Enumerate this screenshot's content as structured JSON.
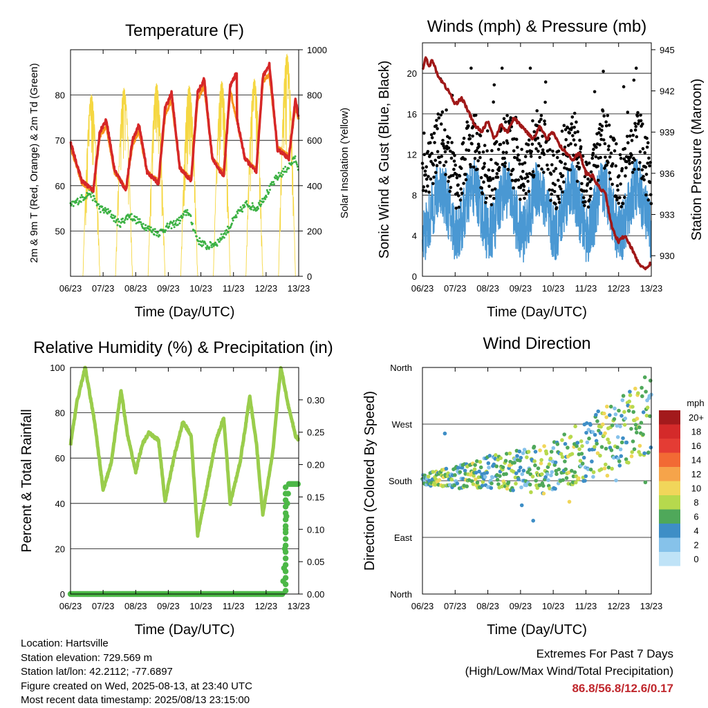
{
  "colors": {
    "temp_red": "#d62728",
    "temp_orange": "#f7941d",
    "dewpoint_green": "#3bb143",
    "solar_yellow": "#f5d742",
    "gust_black": "#000000",
    "wind_blue": "#4a98d3",
    "pressure_maroon": "#a01818",
    "rh_green": "#9acd4c",
    "precip_green": "#4cb847",
    "extremes_red": "#c0272d"
  },
  "chart_data": [
    {
      "id": "temperature",
      "type": "line",
      "title": "Temperature (F)",
      "xlabel": "Time (Day/UTC)",
      "ylabel": "2m & 9m T (Red, Orange) & 2m Td (Green)",
      "y2label": "Solar Insolation (Yellow)",
      "x_ticks": [
        "06/23",
        "07/23",
        "08/23",
        "09/23",
        "10/23",
        "11/23",
        "12/23",
        "13/23"
      ],
      "x_range_days": [
        6,
        13
      ],
      "ylim": [
        40,
        90
      ],
      "y_ticks": [
        50,
        60,
        70,
        80
      ],
      "y2lim": [
        0,
        1000
      ],
      "y2_ticks": [
        0,
        200,
        400,
        600,
        800,
        1000
      ],
      "grid": true,
      "daily_highs": [
        75.5,
        73.5,
        81.0,
        83.5,
        85.0,
        86.8,
        79.0
      ],
      "daily_lows": [
        58.5,
        59.0,
        60.5,
        61.0,
        62.0,
        63.0,
        66.0
      ],
      "series": [
        {
          "name": "2m T",
          "x_day": [
            6.0,
            6.35,
            6.7,
            6.9,
            7.1,
            7.35,
            7.7,
            7.9,
            8.1,
            8.35,
            8.7,
            8.9,
            9.1,
            9.35,
            9.7,
            9.9,
            10.1,
            10.35,
            10.7,
            10.9,
            11.1,
            10.9,
            11.35,
            11.7,
            11.9,
            12.1,
            12.35,
            12.7,
            12.9,
            13.0
          ],
          "values": [
            69.5,
            61.0,
            59.0,
            72.0,
            74.5,
            63.5,
            59.0,
            70.0,
            73.5,
            63.0,
            60.5,
            77.0,
            80.5,
            64.0,
            61.0,
            80.5,
            83.5,
            66.0,
            62.0,
            82.0,
            85.0,
            82.0,
            66.0,
            63.0,
            84.0,
            86.8,
            68.0,
            66.0,
            79.0,
            75.0
          ]
        },
        {
          "name": "9m T",
          "x_day": [
            6.0,
            6.35,
            6.7,
            6.9,
            7.1,
            7.35,
            7.7,
            7.9,
            8.1,
            8.35,
            8.7,
            8.9,
            9.1,
            9.35,
            9.7,
            9.9,
            10.1,
            10.35,
            10.7,
            10.9,
            11.35,
            11.7,
            11.9,
            12.1,
            12.35,
            12.7,
            12.9,
            13.0
          ],
          "values": [
            68.5,
            60.5,
            59.0,
            71.0,
            73.0,
            63.0,
            59.5,
            69.0,
            72.0,
            63.0,
            61.0,
            75.5,
            79.0,
            64.0,
            61.5,
            79.0,
            82.0,
            66.0,
            63.0,
            81.0,
            66.0,
            63.5,
            83.0,
            84.5,
            68.5,
            66.5,
            77.5,
            74.5
          ]
        },
        {
          "name": "2m Td",
          "x_day": [
            6.0,
            6.3,
            6.6,
            6.9,
            7.2,
            7.5,
            7.8,
            8.1,
            8.4,
            8.7,
            9.0,
            9.3,
            9.6,
            9.9,
            10.2,
            10.5,
            10.8,
            11.1,
            11.4,
            11.7,
            12.0,
            12.3,
            12.6,
            12.9,
            13.0
          ],
          "values": [
            55.5,
            57.0,
            58.5,
            55.0,
            54.0,
            51.5,
            53.5,
            52.0,
            50.5,
            49.5,
            51.0,
            52.0,
            54.5,
            48.0,
            46.5,
            47.5,
            50.0,
            53.5,
            56.0,
            55.0,
            58.0,
            61.5,
            63.5,
            66.0,
            64.0
          ]
        },
        {
          "name": "Solar Insolation",
          "axis": "y2",
          "daily_peaks": [
            800,
            830,
            850,
            840,
            860,
            870,
            980
          ]
        }
      ]
    },
    {
      "id": "winds",
      "type": "line",
      "title": "Winds (mph) & Pressure (mb)",
      "xlabel": "Time (Day/UTC)",
      "ylabel": "Sonic Wind & Gust (Blue, Black)",
      "y2label": "Station Pressure (Maroon)",
      "x_ticks": [
        "06/23",
        "07/23",
        "08/23",
        "09/23",
        "10/23",
        "11/23",
        "12/23",
        "13/23"
      ],
      "x_range_days": [
        6,
        13
      ],
      "ylim": [
        0,
        23
      ],
      "y_ticks": [
        0,
        4,
        8,
        12,
        16,
        20
      ],
      "y2lim": [
        928.5,
        945.5
      ],
      "y2_ticks": [
        930,
        933,
        936,
        939,
        942,
        945
      ],
      "grid": true,
      "series": [
        {
          "name": "Station Pressure",
          "axis": "y2",
          "x_day": [
            6.0,
            6.1,
            6.2,
            6.3,
            6.5,
            6.8,
            7.0,
            7.2,
            7.4,
            7.6,
            7.8,
            8.0,
            8.2,
            8.4,
            8.6,
            8.8,
            9.0,
            9.2,
            9.4,
            9.6,
            9.8,
            10.0,
            10.2,
            10.4,
            10.6,
            10.8,
            11.0,
            11.2,
            11.4,
            11.6,
            11.8,
            12.0,
            12.2,
            12.4,
            12.6,
            12.8,
            13.0
          ],
          "values": [
            943.5,
            944.5,
            943.8,
            944.2,
            943.0,
            942.0,
            941.0,
            941.5,
            940.5,
            939.5,
            939.0,
            939.8,
            938.5,
            939.5,
            939.0,
            940.0,
            939.5,
            939.0,
            938.5,
            939.5,
            938.5,
            939.0,
            938.0,
            937.5,
            937.0,
            937.5,
            936.0,
            935.8,
            935.0,
            934.5,
            932.0,
            931.0,
            931.5,
            930.5,
            929.5,
            929.0,
            929.5
          ]
        },
        {
          "name": "Gust",
          "summary": "0.5–20.5 mph, typically 9–16 mph"
        },
        {
          "name": "Sonic Wind",
          "summary": "1–12 mph, typically 4–10 mph"
        }
      ]
    },
    {
      "id": "rh_precip",
      "type": "line",
      "title": "Relative Humidity (%) & Precipitation (in)",
      "xlabel": "Time (Day/UTC)",
      "ylabel": "Percent & Total Rainfall",
      "x_ticks": [
        "06/23",
        "07/23",
        "08/23",
        "09/23",
        "10/23",
        "11/23",
        "12/23",
        "13/23"
      ],
      "x_range_days": [
        6,
        13
      ],
      "ylim": [
        0,
        100
      ],
      "y_ticks": [
        0,
        20,
        40,
        60,
        80,
        100
      ],
      "y2lim": [
        0,
        0.35
      ],
      "y2_ticks": [
        "0.00",
        "0.05",
        "0.10",
        "0.15",
        "0.20",
        "0.25",
        "0.30"
      ],
      "grid": true,
      "series": [
        {
          "name": "Relative Humidity",
          "x_day": [
            6.0,
            6.2,
            6.45,
            6.75,
            7.0,
            7.25,
            7.55,
            7.75,
            8.0,
            8.2,
            8.4,
            8.7,
            8.9,
            9.2,
            9.45,
            9.7,
            9.9,
            10.2,
            10.45,
            10.7,
            10.9,
            11.2,
            11.5,
            11.7,
            11.9,
            12.2,
            12.45,
            12.7,
            12.9,
            13.0
          ],
          "values": [
            66,
            85,
            100,
            75,
            46,
            58,
            90,
            70,
            54,
            66,
            71,
            68,
            41,
            62,
            76,
            70,
            26,
            48,
            67,
            78,
            40,
            58,
            87,
            67,
            35,
            62,
            100,
            82,
            70,
            68
          ]
        },
        {
          "name": "Total Precipitation",
          "axis": "y2",
          "x_day": [
            6.0,
            12.5,
            12.55,
            12.6,
            12.65,
            12.7,
            13.0
          ],
          "values": [
            0.0,
            0.0,
            0.04,
            0.1,
            0.14,
            0.17,
            0.17
          ]
        }
      ]
    },
    {
      "id": "wind_direction",
      "type": "scatter",
      "title": "Wind Direction",
      "xlabel": "Time (Day/UTC)",
      "ylabel": "Direction (Colored By Speed)",
      "x_ticks": [
        "06/23",
        "07/23",
        "08/23",
        "09/23",
        "10/23",
        "11/23",
        "12/23",
        "13/23"
      ],
      "x_range_days": [
        6,
        13
      ],
      "ylim": [
        0,
        360
      ],
      "y_ticks": [
        "North",
        "East",
        "South",
        "West",
        "North"
      ],
      "y_tick_degrees": [
        0,
        90,
        180,
        270,
        360
      ],
      "grid": true,
      "legend": {
        "title": "mph",
        "position": "right",
        "labels": [
          "20+",
          "18",
          "16",
          "14",
          "12",
          "10",
          "8",
          "6",
          "4",
          "2",
          "0"
        ],
        "colors": [
          "#a31a1c",
          "#d42a2a",
          "#e43c34",
          "#f26a34",
          "#f6a44a",
          "#f1d65a",
          "#b6d94d",
          "#4fa85a",
          "#3e8ec6",
          "#86c2ea",
          "#bfe3f7"
        ]
      },
      "mean_direction_deg": {
        "x_day": [
          6.0,
          7.0,
          8.0,
          9.0,
          10.0,
          11.0,
          12.0,
          13.0
        ],
        "values": [
          180,
          185,
          195,
          195,
          200,
          230,
          250,
          290
        ]
      }
    }
  ],
  "info": {
    "location": "Location: Hartsville",
    "elevation": "Station elevation: 729.569 m",
    "latlon": "Station lat/lon: 42.2112; -77.6897",
    "created": "Figure created on Wed, 2025-08-13, at 23:40 UTC",
    "timestamp": "Most recent data timestamp: 2025/08/13 23:15:00"
  },
  "extremes": {
    "title": "Extremes For Past 7 Days",
    "subtitle": "(High/Low/Max Wind/Total Precipitation)",
    "values": "86.8/56.8/12.6/0.17"
  }
}
